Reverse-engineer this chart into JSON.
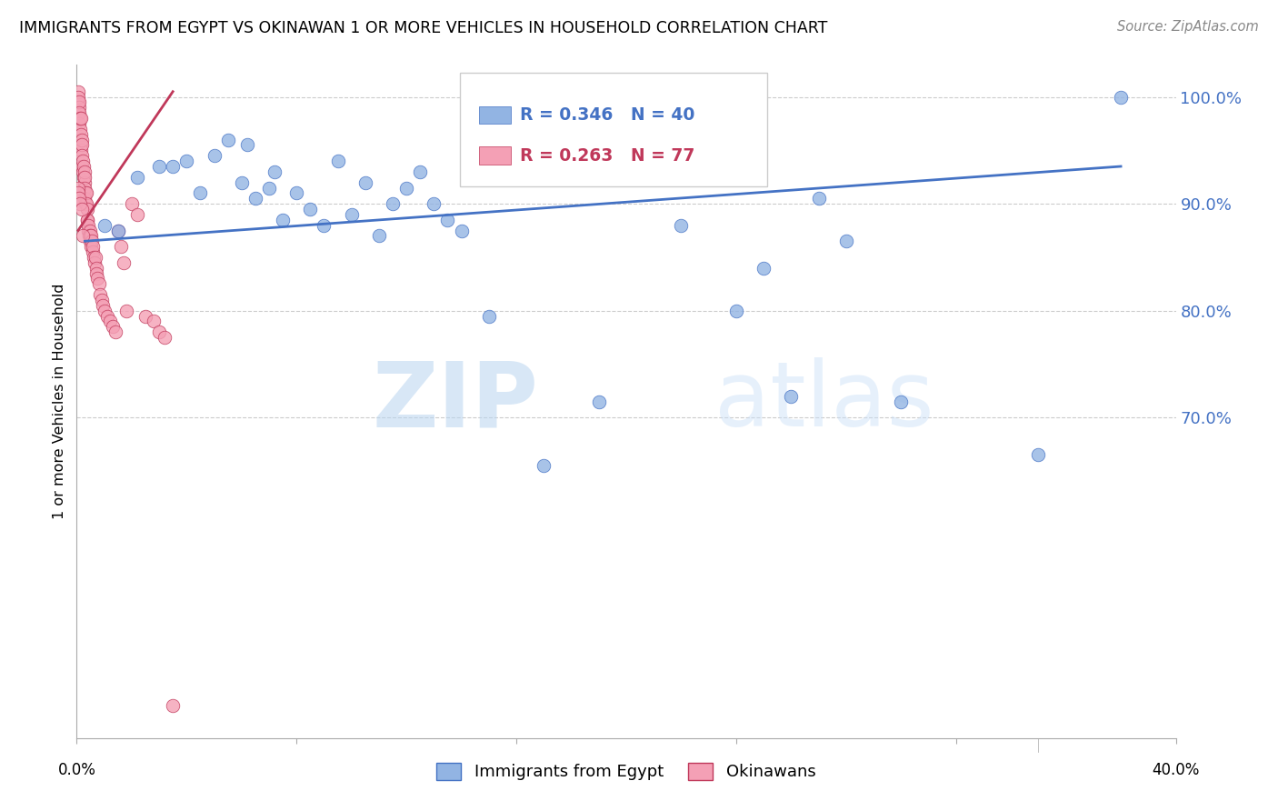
{
  "title": "IMMIGRANTS FROM EGYPT VS OKINAWAN 1 OR MORE VEHICLES IN HOUSEHOLD CORRELATION CHART",
  "source": "Source: ZipAtlas.com",
  "ylabel": "1 or more Vehicles in Household",
  "watermark_zip": "ZIP",
  "watermark_atlas": "atlas",
  "xlim": [
    0.0,
    40.0
  ],
  "ylim": [
    40.0,
    103.0
  ],
  "ytick_vals": [
    70.0,
    80.0,
    90.0,
    100.0
  ],
  "ytick_labels": [
    "70.0%",
    "80.0%",
    "90.0%",
    "100.0%"
  ],
  "blue_R": 0.346,
  "blue_N": 40,
  "pink_R": 0.263,
  "pink_N": 77,
  "legend_label_blue": "Immigrants from Egypt",
  "legend_label_pink": "Okinawans",
  "blue_color": "#92b4e3",
  "pink_color": "#f4a0b5",
  "trendline_blue": "#4472c4",
  "trendline_pink": "#c0385a",
  "blue_trendline_x": [
    0.3,
    38.0
  ],
  "blue_trendline_y": [
    86.5,
    93.5
  ],
  "pink_trendline_x": [
    0.05,
    3.5
  ],
  "pink_trendline_y": [
    87.5,
    100.5
  ],
  "blue_points_x": [
    1.0,
    2.2,
    3.5,
    4.0,
    4.5,
    5.0,
    5.5,
    6.0,
    6.2,
    6.5,
    7.0,
    7.2,
    7.5,
    8.0,
    8.5,
    9.0,
    9.5,
    10.0,
    10.5,
    11.0,
    11.5,
    12.0,
    12.5,
    13.0,
    13.5,
    14.0,
    15.0,
    17.0,
    19.0,
    22.0,
    24.0,
    25.0,
    26.0,
    27.0,
    28.0,
    30.0,
    35.0,
    38.0,
    1.5,
    3.0
  ],
  "blue_points_y": [
    88.0,
    92.5,
    93.5,
    94.0,
    91.0,
    94.5,
    96.0,
    92.0,
    95.5,
    90.5,
    91.5,
    93.0,
    88.5,
    91.0,
    89.5,
    88.0,
    94.0,
    89.0,
    92.0,
    87.0,
    90.0,
    91.5,
    93.0,
    90.0,
    88.5,
    87.5,
    79.5,
    65.5,
    71.5,
    88.0,
    80.0,
    84.0,
    72.0,
    90.5,
    86.5,
    71.5,
    66.5,
    100.0,
    87.5,
    93.5
  ],
  "pink_points_x": [
    0.05,
    0.05,
    0.05,
    0.07,
    0.08,
    0.1,
    0.1,
    0.1,
    0.12,
    0.13,
    0.15,
    0.15,
    0.15,
    0.17,
    0.18,
    0.2,
    0.2,
    0.2,
    0.22,
    0.23,
    0.25,
    0.25,
    0.27,
    0.28,
    0.3,
    0.3,
    0.3,
    0.32,
    0.33,
    0.35,
    0.35,
    0.37,
    0.38,
    0.4,
    0.42,
    0.43,
    0.45,
    0.47,
    0.48,
    0.5,
    0.52,
    0.53,
    0.55,
    0.57,
    0.6,
    0.62,
    0.65,
    0.68,
    0.7,
    0.73,
    0.75,
    0.8,
    0.85,
    0.9,
    0.95,
    1.0,
    1.1,
    1.2,
    1.3,
    1.4,
    1.5,
    1.6,
    1.7,
    1.8,
    2.0,
    2.2,
    2.5,
    2.8,
    3.0,
    3.2,
    3.5,
    0.05,
    0.07,
    0.08,
    0.12,
    0.18,
    0.22
  ],
  "pink_points_y": [
    99.5,
    100.5,
    98.5,
    100.0,
    99.0,
    99.5,
    98.5,
    97.5,
    97.0,
    98.0,
    98.0,
    96.5,
    95.5,
    95.0,
    96.0,
    95.5,
    94.5,
    93.5,
    93.0,
    94.0,
    93.5,
    92.5,
    92.0,
    93.0,
    92.5,
    91.5,
    90.5,
    91.0,
    90.0,
    91.0,
    90.0,
    89.5,
    88.5,
    88.5,
    87.5,
    88.0,
    87.0,
    87.5,
    86.5,
    87.0,
    86.0,
    87.0,
    86.5,
    85.5,
    86.0,
    85.0,
    84.5,
    85.0,
    84.0,
    83.5,
    83.0,
    82.5,
    81.5,
    81.0,
    80.5,
    80.0,
    79.5,
    79.0,
    78.5,
    78.0,
    87.5,
    86.0,
    84.5,
    80.0,
    90.0,
    89.0,
    79.5,
    79.0,
    78.0,
    77.5,
    43.0,
    91.5,
    91.0,
    90.5,
    90.0,
    89.5,
    87.0
  ]
}
